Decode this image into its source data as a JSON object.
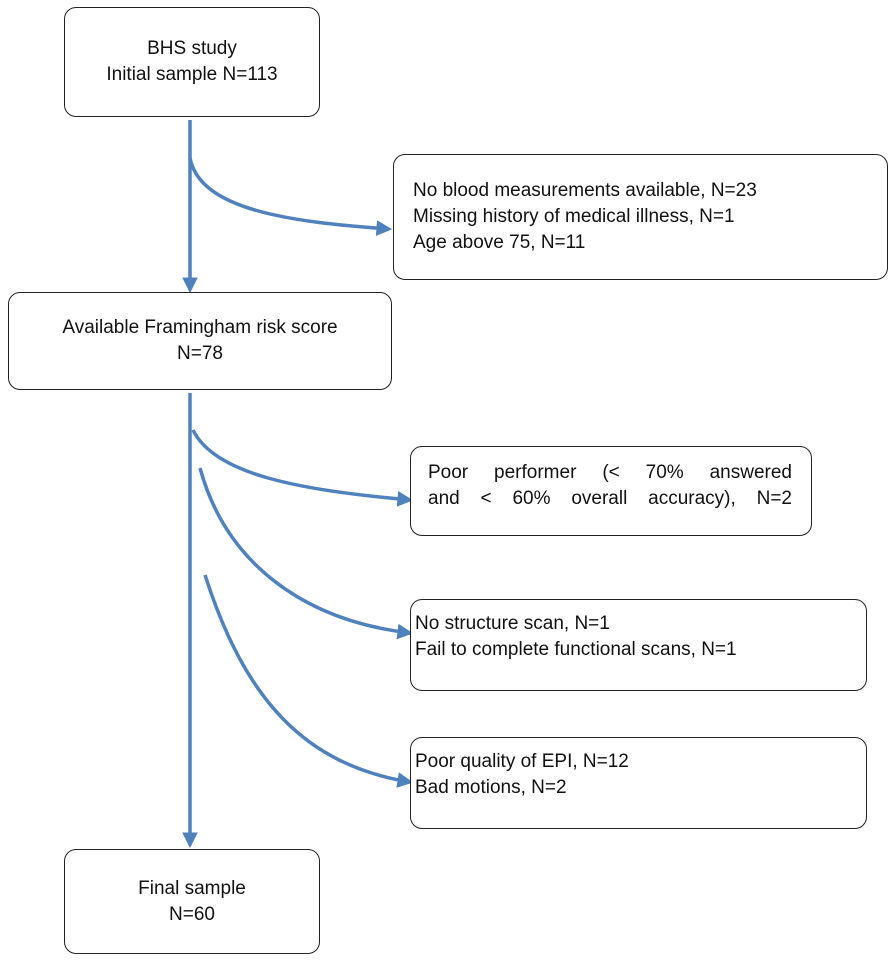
{
  "boxes": {
    "initial": {
      "lines": [
        "BHS study",
        "Initial sample N=113"
      ]
    },
    "exclusion1": {
      "lines": [
        "No blood measurements available, N=23",
        "Missing history of medical illness, N=1",
        "Age above 75, N=11"
      ]
    },
    "framingham": {
      "lines": [
        "Available Framingham risk score",
        "N=78"
      ]
    },
    "exclusion2": {
      "lines": [
        "Poor performer (< 70% answered",
        "and < 60% overall accuracy), N=2"
      ]
    },
    "exclusion3": {
      "lines": [
        "No structure scan, N=1",
        "Fail to complete functional scans, N=1"
      ]
    },
    "exclusion4": {
      "lines": [
        "Poor quality of EPI, N=12",
        "Bad motions, N=2"
      ]
    },
    "final": {
      "lines": [
        "Final sample",
        "N=60"
      ]
    }
  },
  "colors": {
    "arrow": "#4f81bd",
    "border": "#222222"
  }
}
